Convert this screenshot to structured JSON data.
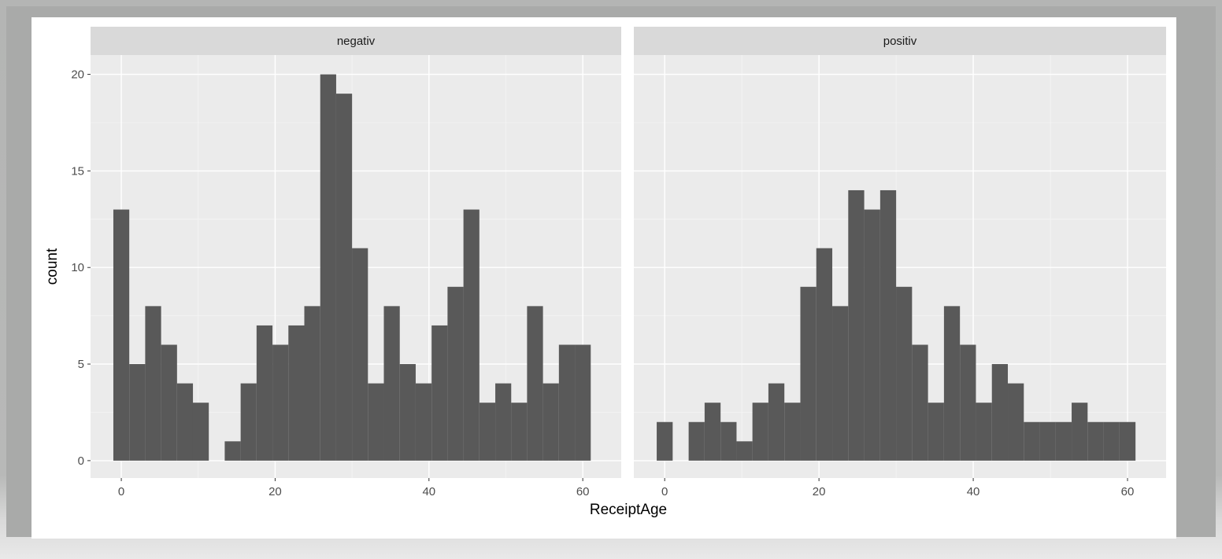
{
  "chart_data": {
    "type": "bar",
    "subtype": "faceted-histogram",
    "xlabel": "ReceiptAge",
    "ylabel": "count",
    "xlim": [
      -4,
      65
    ],
    "ylim": [
      -0.9,
      21
    ],
    "x_ticks": [
      0,
      20,
      40,
      60
    ],
    "y_ticks": [
      0,
      5,
      10,
      15,
      20
    ],
    "bin_width": 2.07,
    "grid": true,
    "bar_color": "#595959",
    "panel_bg": "#ebebeb",
    "strip_bg": "#d9d9d9",
    "facets": [
      {
        "label": "negativ",
        "bin_centers": [
          0,
          2.07,
          4.14,
          6.21,
          8.28,
          10.34,
          12.41,
          14.48,
          16.55,
          18.62,
          20.69,
          22.76,
          24.83,
          26.9,
          28.97,
          31.03,
          33.1,
          35.17,
          37.24,
          39.31,
          41.38,
          43.45,
          45.52,
          47.59,
          49.66,
          51.72,
          53.79,
          55.86,
          57.93,
          60
        ],
        "counts": [
          13,
          5,
          8,
          6,
          4,
          3,
          0,
          1,
          4,
          7,
          6,
          7,
          8,
          20,
          19,
          11,
          4,
          8,
          5,
          4,
          7,
          9,
          13,
          3,
          4,
          3,
          8,
          4,
          6,
          6
        ]
      },
      {
        "label": "positiv",
        "bin_centers": [
          0,
          2.07,
          4.14,
          6.21,
          8.28,
          10.34,
          12.41,
          14.48,
          16.55,
          18.62,
          20.69,
          22.76,
          24.83,
          26.9,
          28.97,
          31.03,
          33.1,
          35.17,
          37.24,
          39.31,
          41.38,
          43.45,
          45.52,
          47.59,
          49.66,
          51.72,
          53.79,
          55.86,
          57.93,
          60
        ],
        "counts": [
          2,
          0,
          2,
          3,
          2,
          1,
          3,
          4,
          3,
          9,
          11,
          8,
          14,
          13,
          14,
          9,
          6,
          3,
          8,
          6,
          3,
          5,
          4,
          2,
          2,
          2,
          3,
          2,
          2,
          2
        ]
      }
    ]
  }
}
